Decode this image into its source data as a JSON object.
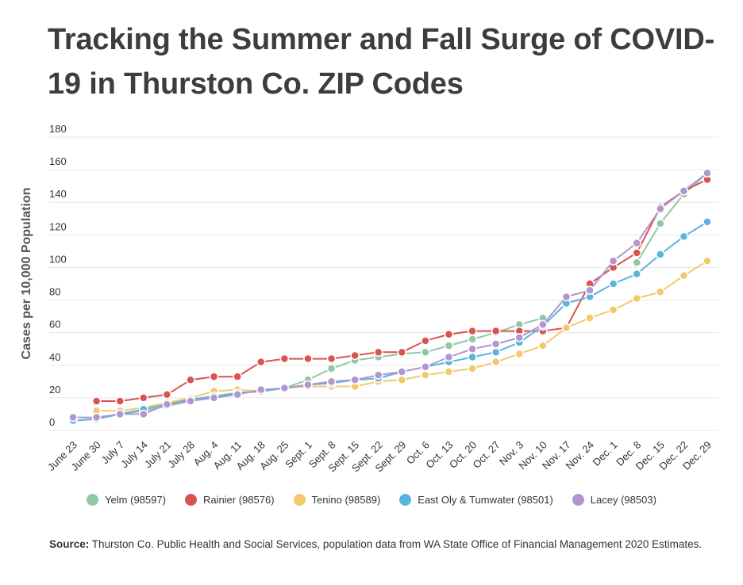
{
  "title": "Tracking the Summer and Fall Surge of COVID-19 in Thurston Co. ZIP Codes",
  "source": {
    "label": "Source:",
    "text": "Thurston Co. Public Health and Social Services, population data from WA State Office of Financial Management 2020 Estimates."
  },
  "chart_data": {
    "type": "line",
    "ylabel": "Cases per 10,000 Population",
    "ylim": [
      0,
      180
    ],
    "yticks": [
      0,
      20,
      40,
      60,
      80,
      100,
      120,
      140,
      160,
      180
    ],
    "grid": true,
    "legend_position": "bottom",
    "categories": [
      "June 23",
      "June 30",
      "July 7",
      "July 14",
      "July 21",
      "July 28",
      "Aug. 4",
      "Aug. 11",
      "Aug. 18",
      "Aug. 25",
      "Sept. 1",
      "Sept. 8",
      "Sept. 15",
      "Sept. 22",
      "Sept. 29",
      "Oct. 6",
      "Oct. 13",
      "Oct. 20",
      "Oct. 27",
      "Nov. 3",
      "Nov. 10",
      "Nov. 17",
      "Nov. 24",
      "Dec. 1",
      "Dec. 8",
      "Dec. 15",
      "Dec. 22",
      "Dec. 29"
    ],
    "series": [
      {
        "name": "Yelm (98597)",
        "color": "#8fc8a6",
        "values": [
          null,
          8,
          10,
          12,
          15,
          18,
          21,
          23,
          24,
          26,
          31,
          38,
          43,
          45,
          47,
          48,
          52,
          56,
          60,
          65,
          69,
          null,
          null,
          null,
          103,
          127,
          145,
          158
        ]
      },
      {
        "name": "Rainier (98576)",
        "color": "#d9534f",
        "values": [
          null,
          18,
          18,
          20,
          22,
          31,
          33,
          33,
          42,
          44,
          44,
          44,
          46,
          48,
          48,
          55,
          59,
          61,
          61,
          61,
          61,
          63,
          90,
          100,
          109,
          137,
          147,
          154
        ]
      },
      {
        "name": "Tenino (98589)",
        "color": "#f3ca6b",
        "values": [
          null,
          12,
          12,
          14,
          17,
          20,
          24,
          25,
          24,
          26,
          27,
          27,
          27,
          30,
          31,
          34,
          36,
          38,
          42,
          47,
          52,
          63,
          69,
          74,
          81,
          85,
          95,
          104
        ]
      },
      {
        "name": "East Oly & Tumwater (98501)",
        "color": "#5bb3e0",
        "values": [
          6,
          7,
          10,
          13,
          16,
          19,
          21,
          23,
          24,
          26,
          28,
          29,
          31,
          32,
          36,
          39,
          42,
          45,
          48,
          54,
          64,
          78,
          82,
          90,
          96,
          108,
          119,
          128
        ]
      },
      {
        "name": "Lacey (98503)",
        "color": "#b196cf",
        "values": [
          8,
          8,
          10,
          10,
          16,
          18,
          20,
          22,
          25,
          26,
          28,
          30,
          31,
          34,
          36,
          39,
          45,
          50,
          53,
          57,
          65,
          82,
          86,
          104,
          115,
          136,
          147,
          158
        ]
      }
    ]
  }
}
